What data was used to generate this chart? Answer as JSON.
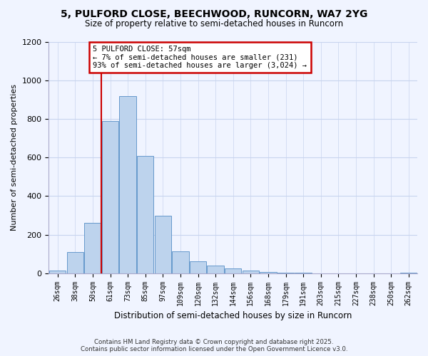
{
  "title": "5, PULFORD CLOSE, BEECHWOOD, RUNCORN, WA7 2YG",
  "subtitle": "Size of property relative to semi-detached houses in Runcorn",
  "xlabel": "Distribution of semi-detached houses by size in Runcorn",
  "ylabel": "Number of semi-detached properties",
  "bar_labels": [
    "26sqm",
    "38sqm",
    "50sqm",
    "61sqm",
    "73sqm",
    "85sqm",
    "97sqm",
    "109sqm",
    "120sqm",
    "132sqm",
    "144sqm",
    "156sqm",
    "168sqm",
    "179sqm",
    "191sqm",
    "203sqm",
    "215sqm",
    "227sqm",
    "238sqm",
    "250sqm",
    "262sqm"
  ],
  "bar_values": [
    15,
    110,
    260,
    790,
    920,
    610,
    300,
    115,
    60,
    40,
    25,
    15,
    5,
    2,
    1,
    0,
    0,
    0,
    0,
    0,
    2
  ],
  "bar_color": "#bdd3ed",
  "bar_edge_color": "#6699cc",
  "vline_color": "#cc0000",
  "annotation_title": "5 PULFORD CLOSE: 57sqm",
  "annotation_line1": "← 7% of semi-detached houses are smaller (231)",
  "annotation_line2": "93% of semi-detached houses are larger (3,024) →",
  "annotation_box_color": "#ffffff",
  "annotation_border_color": "#cc0000",
  "ylim": [
    0,
    1200
  ],
  "yticks": [
    0,
    200,
    400,
    600,
    800,
    1000,
    1200
  ],
  "footer_line1": "Contains HM Land Registry data © Crown copyright and database right 2025.",
  "footer_line2": "Contains public sector information licensed under the Open Government Licence v3.0.",
  "bg_color": "#f0f4ff",
  "grid_color": "#c8d4ee"
}
